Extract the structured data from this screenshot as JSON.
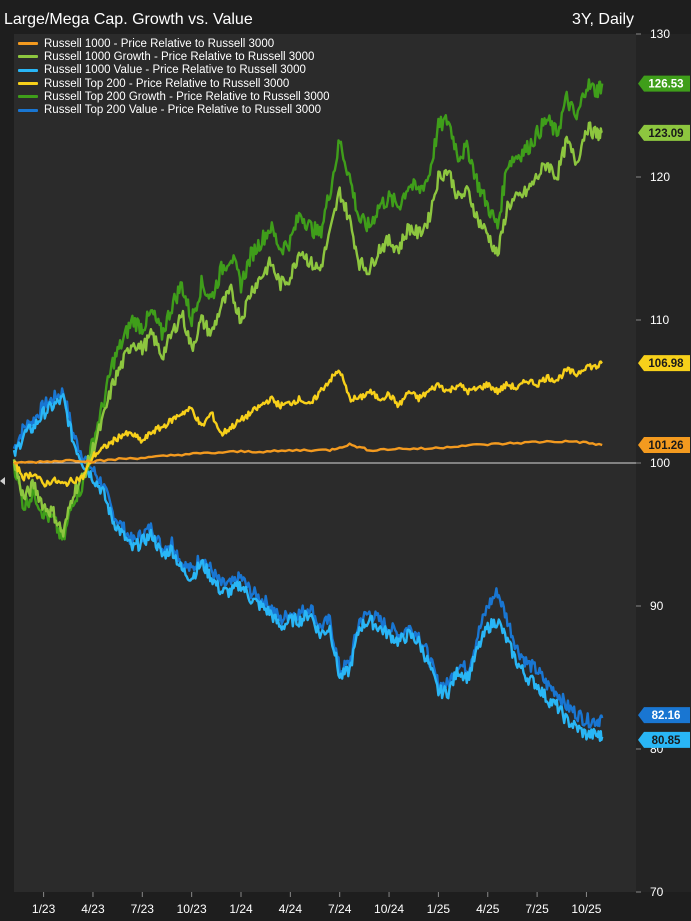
{
  "header": {
    "title": "Large/Mega Cap. Growth vs. Value",
    "period": "3Y, Daily"
  },
  "colors": {
    "background": "#2b2b2b",
    "russell_1000": "#f39a1f",
    "russell_1000_growth": "#8dc63f",
    "russell_1000_value": "#29b6f6",
    "russell_top200": "#f7d01a",
    "russell_top200_growth": "#3f9e1a",
    "russell_top200_value": "#1976d2"
  },
  "chart_data": {
    "type": "line",
    "title": "Large/Mega Cap. Growth vs. Value",
    "subtitle": "3Y, Daily",
    "y_axis_position": "right",
    "ylim": [
      70,
      130
    ],
    "y_ticks": [
      70,
      80,
      90,
      100,
      110,
      120,
      130
    ],
    "x_ticks": [
      "1/23",
      "4/23",
      "7/23",
      "10/23",
      "1/24",
      "4/24",
      "7/24",
      "10/24",
      "1/25",
      "4/25",
      "7/25",
      "10/25"
    ],
    "x_tick_positions": [
      2023.0,
      2023.25,
      2023.5,
      2023.75,
      2024.0,
      2024.25,
      2024.5,
      2024.75,
      2025.0,
      2025.25,
      2025.5,
      2025.75
    ],
    "xlim": [
      2022.85,
      2025.92
    ],
    "reference_line": 100,
    "legend_position": "top-left",
    "grid": false,
    "series": [
      {
        "name": "Russell 1000 - Price Relative to Russell 3000",
        "color_key": "russell_1000",
        "last_value": "101.26",
        "x": [
          2022.85,
          2023.0,
          2023.15,
          2023.25,
          2023.4,
          2023.55,
          2023.7,
          2023.85,
          2024.0,
          2024.15,
          2024.3,
          2024.45,
          2024.55,
          2024.65,
          2024.8,
          2024.95,
          2025.1,
          2025.25,
          2025.4,
          2025.55,
          2025.7,
          2025.83
        ],
        "y": [
          100.0,
          100.1,
          100.2,
          100.1,
          100.3,
          100.4,
          100.6,
          100.7,
          100.8,
          100.8,
          100.9,
          100.9,
          101.3,
          100.9,
          101.0,
          101.0,
          101.2,
          101.3,
          101.4,
          101.5,
          101.5,
          101.26
        ]
      },
      {
        "name": "Russell 1000 Growth - Price Relative to Russell 3000",
        "color_key": "russell_1000_growth",
        "last_value": "123.09",
        "x": [
          2022.85,
          2022.9,
          2022.95,
          2023.0,
          2023.05,
          2023.1,
          2023.15,
          2023.2,
          2023.25,
          2023.3,
          2023.35,
          2023.4,
          2023.45,
          2023.5,
          2023.55,
          2023.6,
          2023.65,
          2023.7,
          2023.75,
          2023.8,
          2023.85,
          2023.9,
          2023.95,
          2024.0,
          2024.05,
          2024.1,
          2024.15,
          2024.2,
          2024.25,
          2024.3,
          2024.35,
          2024.4,
          2024.45,
          2024.5,
          2024.55,
          2024.6,
          2024.65,
          2024.7,
          2024.75,
          2024.8,
          2024.85,
          2024.9,
          2024.95,
          2025.0,
          2025.05,
          2025.1,
          2025.15,
          2025.2,
          2025.25,
          2025.3,
          2025.35,
          2025.4,
          2025.45,
          2025.5,
          2025.55,
          2025.6,
          2025.65,
          2025.7,
          2025.75,
          2025.8,
          2025.83
        ],
        "y": [
          100.0,
          97.5,
          98.5,
          97.0,
          96.5,
          95.0,
          98.0,
          99.0,
          101.0,
          103.0,
          105.5,
          107.0,
          108.5,
          108.0,
          109.0,
          107.5,
          109.0,
          110.5,
          108.0,
          110.0,
          109.0,
          111.0,
          112.0,
          110.0,
          112.0,
          113.0,
          114.0,
          112.5,
          113.0,
          115.0,
          114.0,
          113.5,
          116.0,
          119.0,
          117.0,
          114.0,
          113.5,
          115.0,
          115.5,
          115.0,
          116.5,
          116.0,
          117.0,
          120.0,
          120.5,
          118.5,
          119.0,
          117.0,
          116.0,
          114.5,
          118.0,
          118.5,
          119.0,
          120.0,
          121.0,
          120.0,
          122.5,
          121.0,
          123.5,
          123.0,
          123.09
        ]
      },
      {
        "name": "Russell 1000 Value - Price Relative to Russell 3000",
        "color_key": "russell_1000_value",
        "last_value": "80.85",
        "x": [
          2022.85,
          2022.9,
          2022.95,
          2023.0,
          2023.05,
          2023.1,
          2023.15,
          2023.2,
          2023.25,
          2023.3,
          2023.35,
          2023.4,
          2023.45,
          2023.5,
          2023.55,
          2023.6,
          2023.65,
          2023.7,
          2023.75,
          2023.8,
          2023.85,
          2023.9,
          2023.95,
          2024.0,
          2024.05,
          2024.1,
          2024.15,
          2024.2,
          2024.25,
          2024.3,
          2024.35,
          2024.4,
          2024.45,
          2024.5,
          2024.55,
          2024.6,
          2024.65,
          2024.7,
          2024.75,
          2024.8,
          2024.85,
          2024.9,
          2024.95,
          2025.0,
          2025.05,
          2025.1,
          2025.15,
          2025.2,
          2025.25,
          2025.3,
          2025.35,
          2025.4,
          2025.45,
          2025.5,
          2025.55,
          2025.6,
          2025.65,
          2025.7,
          2025.75,
          2025.8,
          2025.83
        ],
        "y": [
          100.5,
          102.0,
          102.5,
          103.5,
          104.0,
          104.5,
          101.5,
          100.0,
          99.0,
          98.0,
          96.0,
          95.0,
          94.0,
          94.5,
          95.0,
          93.5,
          94.0,
          92.5,
          92.0,
          93.0,
          92.0,
          91.0,
          91.0,
          91.5,
          90.5,
          90.0,
          89.5,
          88.5,
          89.0,
          89.0,
          89.5,
          88.0,
          88.5,
          85.0,
          85.5,
          88.5,
          89.0,
          88.5,
          88.0,
          87.5,
          88.0,
          87.5,
          86.0,
          84.0,
          84.0,
          85.5,
          85.0,
          87.0,
          88.5,
          89.0,
          87.5,
          86.0,
          85.0,
          84.5,
          83.5,
          83.0,
          82.0,
          81.5,
          81.0,
          81.0,
          80.85
        ]
      },
      {
        "name": "Russell Top 200 - Price Relative to Russell 3000",
        "color_key": "russell_top200",
        "last_value": "106.98",
        "x": [
          2022.85,
          2022.9,
          2022.95,
          2023.0,
          2023.05,
          2023.1,
          2023.15,
          2023.2,
          2023.25,
          2023.3,
          2023.35,
          2023.4,
          2023.45,
          2023.5,
          2023.55,
          2023.6,
          2023.65,
          2023.7,
          2023.75,
          2023.8,
          2023.85,
          2023.9,
          2023.95,
          2024.0,
          2024.05,
          2024.1,
          2024.15,
          2024.2,
          2024.25,
          2024.3,
          2024.35,
          2024.4,
          2024.45,
          2024.5,
          2024.55,
          2024.6,
          2024.65,
          2024.7,
          2024.75,
          2024.8,
          2024.85,
          2024.9,
          2024.95,
          2025.0,
          2025.05,
          2025.1,
          2025.15,
          2025.2,
          2025.25,
          2025.3,
          2025.35,
          2025.4,
          2025.45,
          2025.5,
          2025.55,
          2025.6,
          2025.65,
          2025.7,
          2025.75,
          2025.8,
          2025.83
        ],
        "y": [
          100.0,
          99.0,
          99.3,
          98.5,
          98.8,
          98.5,
          98.8,
          99.0,
          100.5,
          101.0,
          101.5,
          102.0,
          102.0,
          101.5,
          102.2,
          102.5,
          103.0,
          103.5,
          103.8,
          102.5,
          103.5,
          102.0,
          102.5,
          103.0,
          103.5,
          104.0,
          104.5,
          104.0,
          104.2,
          104.5,
          104.0,
          105.0,
          105.8,
          106.5,
          104.5,
          104.5,
          105.0,
          104.5,
          104.8,
          104.0,
          105.0,
          104.5,
          105.0,
          105.5,
          105.0,
          105.5,
          105.0,
          105.2,
          105.5,
          105.0,
          105.5,
          105.2,
          105.8,
          105.5,
          106.0,
          105.8,
          106.5,
          106.2,
          106.8,
          106.7,
          106.98
        ]
      },
      {
        "name": "Russell Top 200 Growth - Price Relative to Russell 3000",
        "color_key": "russell_top200_growth",
        "last_value": "126.53",
        "x": [
          2022.85,
          2022.9,
          2022.95,
          2023.0,
          2023.05,
          2023.1,
          2023.15,
          2023.2,
          2023.25,
          2023.3,
          2023.35,
          2023.4,
          2023.45,
          2023.5,
          2023.55,
          2023.6,
          2023.65,
          2023.7,
          2023.75,
          2023.8,
          2023.85,
          2023.9,
          2023.95,
          2024.0,
          2024.05,
          2024.1,
          2024.15,
          2024.2,
          2024.25,
          2024.3,
          2024.35,
          2024.4,
          2024.45,
          2024.5,
          2024.55,
          2024.6,
          2024.65,
          2024.7,
          2024.75,
          2024.8,
          2024.85,
          2024.9,
          2024.95,
          2025.0,
          2025.05,
          2025.1,
          2025.15,
          2025.2,
          2025.25,
          2025.3,
          2025.35,
          2025.4,
          2025.45,
          2025.5,
          2025.55,
          2025.6,
          2025.65,
          2025.7,
          2025.75,
          2025.8,
          2025.83
        ],
        "y": [
          100.0,
          97.0,
          98.0,
          96.5,
          96.0,
          94.5,
          97.5,
          98.5,
          101.5,
          104.0,
          107.0,
          108.5,
          110.0,
          109.5,
          110.5,
          109.0,
          111.0,
          112.5,
          110.0,
          112.5,
          111.5,
          113.5,
          114.5,
          112.5,
          114.5,
          115.5,
          116.5,
          115.0,
          115.5,
          117.5,
          116.5,
          116.0,
          119.0,
          122.5,
          120.0,
          117.0,
          116.5,
          118.0,
          118.5,
          118.0,
          119.5,
          119.0,
          120.0,
          123.5,
          124.0,
          121.5,
          122.0,
          119.5,
          118.0,
          116.5,
          121.0,
          121.5,
          122.0,
          123.0,
          124.0,
          123.0,
          125.5,
          124.0,
          126.5,
          126.0,
          126.53
        ]
      },
      {
        "name": "Russell Top 200 Value - Price Relative to Russell 3000",
        "color_key": "russell_top200_value",
        "last_value": "82.16",
        "x": [
          2022.85,
          2022.9,
          2022.95,
          2023.0,
          2023.05,
          2023.1,
          2023.15,
          2023.2,
          2023.25,
          2023.3,
          2023.35,
          2023.4,
          2023.45,
          2023.5,
          2023.55,
          2023.6,
          2023.65,
          2023.7,
          2023.75,
          2023.8,
          2023.85,
          2023.9,
          2023.95,
          2024.0,
          2024.05,
          2024.1,
          2024.15,
          2024.2,
          2024.25,
          2024.3,
          2024.35,
          2024.4,
          2024.45,
          2024.5,
          2024.55,
          2024.6,
          2024.65,
          2024.7,
          2024.75,
          2024.8,
          2024.85,
          2024.9,
          2024.95,
          2025.0,
          2025.05,
          2025.1,
          2025.15,
          2025.2,
          2025.25,
          2025.3,
          2025.35,
          2025.4,
          2025.45,
          2025.5,
          2025.55,
          2025.6,
          2025.65,
          2025.7,
          2025.75,
          2025.8,
          2025.83
        ],
        "y": [
          101.0,
          102.5,
          103.0,
          104.0,
          104.5,
          105.0,
          102.0,
          100.5,
          99.5,
          98.5,
          96.5,
          95.5,
          94.5,
          95.0,
          95.5,
          94.0,
          94.5,
          93.0,
          92.5,
          93.5,
          92.5,
          91.5,
          91.5,
          92.0,
          91.0,
          90.5,
          90.0,
          89.0,
          89.5,
          89.5,
          90.0,
          88.5,
          89.0,
          85.5,
          86.0,
          89.0,
          89.5,
          89.0,
          88.5,
          88.0,
          88.5,
          88.0,
          86.5,
          84.5,
          84.5,
          86.0,
          85.5,
          88.0,
          90.0,
          91.0,
          89.0,
          87.0,
          86.0,
          85.5,
          84.5,
          84.0,
          83.0,
          82.5,
          82.0,
          82.0,
          82.16
        ]
      }
    ]
  }
}
